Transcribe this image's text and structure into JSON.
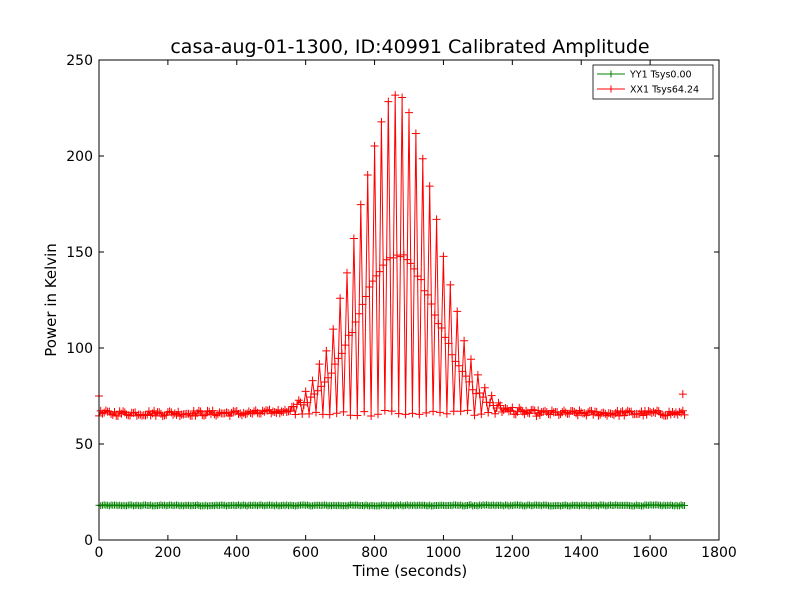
{
  "chart_data": {
    "type": "scatter",
    "title": "casa-aug-01-1300, ID:40991 Calibrated Amplitude",
    "xlabel": "Time (seconds)",
    "ylabel": "Power in Kelvin",
    "xlim": [
      0,
      1800
    ],
    "ylim": [
      0,
      250
    ],
    "xticks": [
      0,
      200,
      400,
      600,
      800,
      1000,
      1200,
      1400,
      1600,
      1800
    ],
    "yticks": [
      0,
      50,
      100,
      150,
      200,
      250
    ],
    "grid": false,
    "legend_position": "top-right",
    "marker": "+",
    "series": [
      {
        "name": "YY1 Tsys0.00",
        "color": "#008000",
        "x_range": [
          0,
          1700
        ],
        "baseline": 18,
        "sampling_interval": 5
      },
      {
        "name": "XX1 Tsys64.24",
        "color": "#ff0000",
        "x_range": [
          0,
          1700
        ],
        "baseline": 66,
        "sampling_interval": 5,
        "peak": {
          "x": 865,
          "y": 231,
          "sigma": 115
        },
        "edge_spikes": [
          {
            "x": 0,
            "y": 75
          },
          {
            "x": 1695,
            "y": 76
          }
        ]
      }
    ]
  }
}
